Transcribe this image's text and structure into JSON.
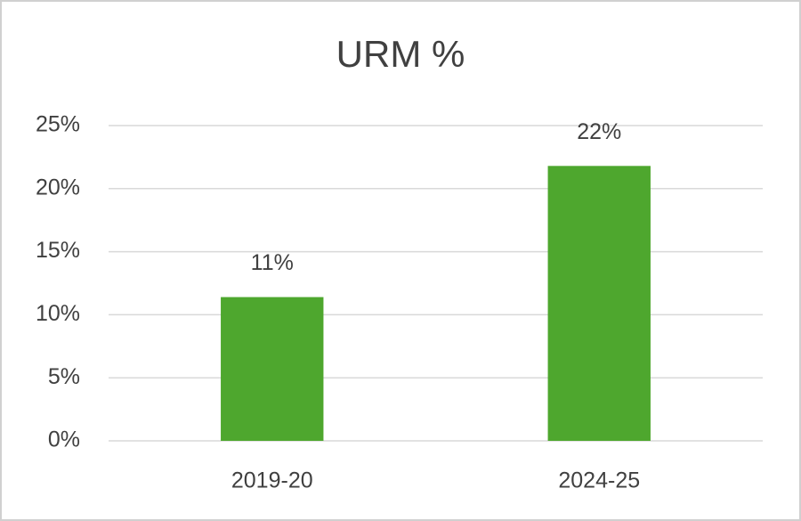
{
  "chart_data": {
    "type": "bar",
    "title": "URM %",
    "categories": [
      "2019-20",
      "2024-25"
    ],
    "values": [
      11.4,
      21.8
    ],
    "value_labels": [
      "11%",
      "22%"
    ],
    "color": "#4ea72e",
    "ylim": [
      0,
      25
    ],
    "yticks": [
      {
        "value": 0,
        "label": "0%"
      },
      {
        "value": 5,
        "label": "5%"
      },
      {
        "value": 10,
        "label": "10%"
      },
      {
        "value": 15,
        "label": "15%"
      },
      {
        "value": 20,
        "label": "20%"
      },
      {
        "value": 25,
        "label": "25%"
      }
    ],
    "grid": true
  }
}
